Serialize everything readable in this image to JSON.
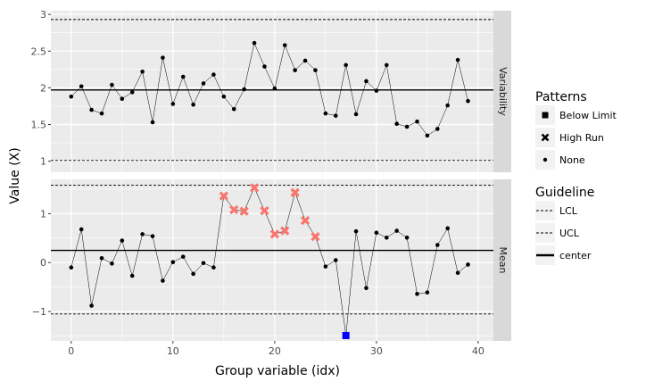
{
  "chart_data": {
    "type": "line",
    "subtype": "control-chart (faceted)",
    "xlabel": "Group variable (idx)",
    "ylabel": "Value (X)",
    "xlim": [
      -2,
      41.5
    ],
    "x_ticks": [
      0,
      10,
      20,
      30,
      40
    ],
    "x_tick_labels": [
      "0",
      "10",
      "20",
      "30",
      "40"
    ],
    "grid": true,
    "legend_position": "right",
    "colors": {
      "none_point": "#000000",
      "high_run": "#f8766d",
      "below_limit": "#0000ff",
      "line": "#000000",
      "panel_bg": "#ebebeb",
      "grid": "#ffffff",
      "strip_bg": "#d9d9d9"
    },
    "facets": [
      {
        "strip_label": "Variability",
        "ylim": [
          0.85,
          3.05
        ],
        "y_ticks": [
          1,
          1.5,
          2,
          2.5,
          3
        ],
        "y_tick_labels": [
          "1",
          "1.5",
          "2",
          "2.5",
          "3"
        ],
        "center": 1.97,
        "lcl": 1.01,
        "ucl": 2.93,
        "x": [
          0,
          1,
          2,
          3,
          4,
          5,
          6,
          7,
          8,
          9,
          10,
          11,
          12,
          13,
          14,
          15,
          16,
          17,
          18,
          19,
          20,
          21,
          22,
          23,
          24,
          25,
          26,
          27,
          28,
          29,
          30,
          31,
          32,
          33,
          34,
          35,
          36,
          37,
          38,
          39
        ],
        "values": [
          1.88,
          2.02,
          1.7,
          1.65,
          2.04,
          1.85,
          1.94,
          2.22,
          1.53,
          2.41,
          1.78,
          2.15,
          1.77,
          2.06,
          2.18,
          1.88,
          1.71,
          1.98,
          2.61,
          2.29,
          1.99,
          2.58,
          2.24,
          2.37,
          2.24,
          1.65,
          1.62,
          2.31,
          1.64,
          2.09,
          1.96,
          2.31,
          1.51,
          1.47,
          1.54,
          1.35,
          1.44,
          1.76,
          2.38,
          1.82
        ],
        "patterns": [
          "None",
          "None",
          "None",
          "None",
          "None",
          "None",
          "None",
          "None",
          "None",
          "None",
          "None",
          "None",
          "None",
          "None",
          "None",
          "None",
          "None",
          "None",
          "None",
          "None",
          "None",
          "None",
          "None",
          "None",
          "None",
          "None",
          "None",
          "None",
          "None",
          "None",
          "None",
          "None",
          "None",
          "None",
          "None",
          "None",
          "None",
          "None",
          "None",
          "None"
        ]
      },
      {
        "strip_label": "Mean",
        "ylim": [
          -1.6,
          1.7
        ],
        "y_ticks": [
          -1,
          0,
          1
        ],
        "y_tick_labels": [
          "−1",
          "0",
          "1"
        ],
        "center": 0.25,
        "lcl": -1.05,
        "ucl": 1.58,
        "x": [
          0,
          1,
          2,
          3,
          4,
          5,
          6,
          7,
          8,
          9,
          10,
          11,
          12,
          13,
          14,
          15,
          16,
          17,
          18,
          19,
          20,
          21,
          22,
          23,
          24,
          25,
          26,
          27,
          28,
          29,
          30,
          31,
          32,
          33,
          34,
          35,
          36,
          37,
          38,
          39
        ],
        "values": [
          -0.1,
          0.68,
          -0.88,
          0.09,
          -0.02,
          0.45,
          -0.27,
          0.58,
          0.54,
          -0.37,
          0.01,
          0.12,
          -0.23,
          -0.01,
          -0.1,
          1.36,
          1.08,
          1.05,
          1.53,
          1.06,
          0.58,
          0.65,
          1.43,
          0.86,
          0.53,
          -0.08,
          0.05,
          -1.49,
          0.64,
          -0.52,
          0.61,
          0.51,
          0.65,
          0.51,
          -0.64,
          -0.61,
          0.36,
          0.7,
          -0.21,
          -0.04
        ],
        "patterns": [
          "None",
          "None",
          "None",
          "None",
          "None",
          "None",
          "None",
          "None",
          "None",
          "None",
          "None",
          "None",
          "None",
          "None",
          "None",
          "High Run",
          "High Run",
          "High Run",
          "High Run",
          "High Run",
          "High Run",
          "High Run",
          "High Run",
          "High Run",
          "High Run",
          "None",
          "None",
          "Below Limit",
          "None",
          "None",
          "None",
          "None",
          "None",
          "None",
          "None",
          "None",
          "None",
          "None",
          "None",
          "None"
        ]
      }
    ],
    "legends": [
      {
        "title": "Patterns",
        "entries": [
          {
            "label": "Below Limit",
            "shape": "square"
          },
          {
            "label": "High Run",
            "shape": "x"
          },
          {
            "label": "None",
            "shape": "dot"
          }
        ]
      },
      {
        "title": "Guideline",
        "entries": [
          {
            "label": "LCL",
            "line": "dashed"
          },
          {
            "label": "UCL",
            "line": "dashed"
          },
          {
            "label": "center",
            "line": "solid"
          }
        ]
      }
    ]
  }
}
